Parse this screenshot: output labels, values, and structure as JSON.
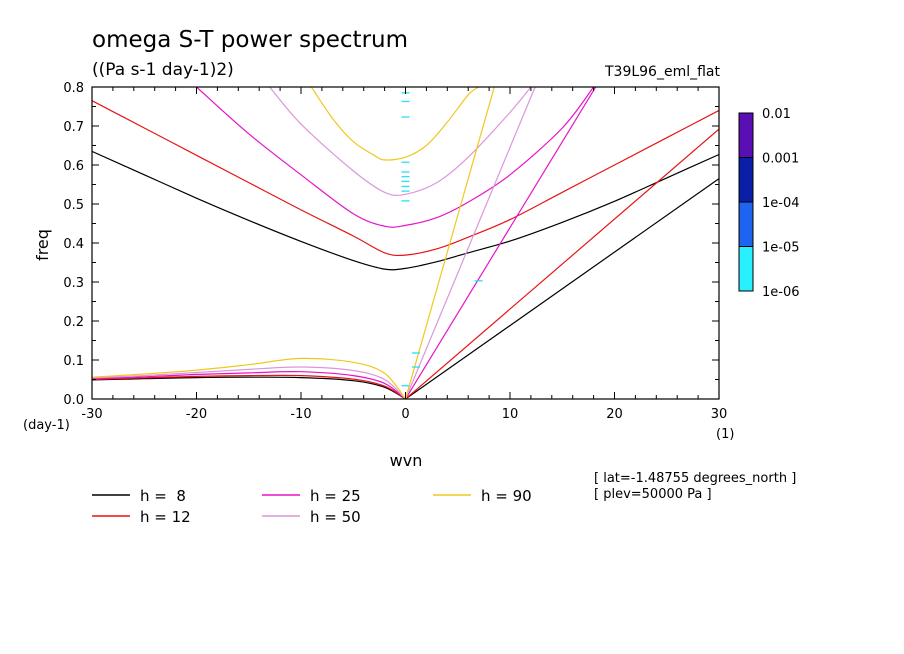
{
  "chart_data": {
    "type": "line",
    "title": "omega S-T power spectrum",
    "subtitle": "((Pa s-1 day-1)2)",
    "run_label": "T39L96_eml_flat",
    "xlabel": "wvn",
    "ylabel": "freq",
    "x_unit": "(1)",
    "y_unit": "(day-1)",
    "xlim": [
      -30,
      30
    ],
    "ylim": [
      0,
      0.8
    ],
    "x_ticks": [
      -30,
      -20,
      -10,
      0,
      10,
      20,
      30
    ],
    "x_tick_labels": [
      "-30",
      "-20",
      "-10",
      "0",
      "10",
      "20",
      "30"
    ],
    "y_ticks": [
      0,
      0.1,
      0.2,
      0.3,
      0.4,
      0.5,
      0.6,
      0.7,
      0.8
    ],
    "y_tick_labels": [
      "0.0",
      "0.1",
      "0.2",
      "0.3",
      "0.4",
      "0.5",
      "0.6",
      "0.7",
      "0.8"
    ],
    "grid": false,
    "info": [
      "[ lat=-1.48755 degrees_north ]",
      "[ plev=50000 Pa ]"
    ],
    "colorbar": {
      "labels": [
        "0.01",
        "0.001",
        "1e-04",
        "1e-05",
        "1e-06"
      ],
      "colors": [
        "#5a0fb4",
        "#0a1ea8",
        "#1e64f0",
        "#28f0ff"
      ]
    },
    "series": [
      {
        "name": "h =  8",
        "color": "#000000",
        "ig": {
          "x": [
            -30,
            -25,
            -20,
            -15,
            -10,
            -5,
            -2,
            0,
            3,
            6,
            10,
            15,
            20,
            25,
            30
          ],
          "y": [
            0.635,
            0.575,
            0.515,
            0.458,
            0.404,
            0.355,
            0.333,
            0.335,
            0.352,
            0.375,
            0.405,
            0.453,
            0.507,
            0.567,
            0.627
          ]
        },
        "kelvin": {
          "x": [
            0,
            30
          ],
          "y": [
            0,
            0.565
          ]
        },
        "rossby": {
          "x": [
            -30,
            -25,
            -20,
            -15,
            -10,
            -5,
            -2,
            0
          ],
          "y": [
            0.049,
            0.052,
            0.055,
            0.056,
            0.055,
            0.047,
            0.03,
            0
          ]
        }
      },
      {
        "name": "h = 12",
        "color": "#e61414",
        "ig": {
          "x": [
            -30,
            -25,
            -20,
            -15,
            -10,
            -5,
            -2,
            0,
            3,
            6,
            10,
            15,
            20,
            25,
            30
          ],
          "y": [
            0.765,
            0.695,
            0.625,
            0.555,
            0.485,
            0.418,
            0.375,
            0.369,
            0.385,
            0.415,
            0.46,
            0.53,
            0.6,
            0.67,
            0.74
          ]
        },
        "kelvin": {
          "x": [
            0,
            30
          ],
          "y": [
            0,
            0.692
          ]
        },
        "rossby": {
          "x": [
            -30,
            -25,
            -20,
            -15,
            -10,
            -5,
            -2,
            0
          ],
          "y": [
            0.05,
            0.054,
            0.058,
            0.06,
            0.06,
            0.051,
            0.033,
            0
          ]
        }
      },
      {
        "name": "h = 25",
        "color": "#e614c8",
        "ig": {
          "x": [
            -20,
            -15,
            -10,
            -5,
            -2,
            0,
            3,
            6,
            10,
            15,
            18
          ],
          "y": [
            0.8,
            0.68,
            0.575,
            0.475,
            0.443,
            0.445,
            0.465,
            0.505,
            0.575,
            0.695,
            0.8
          ]
        },
        "kelvin": {
          "x": [
            0,
            18.2
          ],
          "y": [
            0,
            0.8
          ]
        },
        "rossby": {
          "x": [
            -30,
            -25,
            -20,
            -15,
            -10,
            -5,
            -2,
            0
          ],
          "y": [
            0.052,
            0.057,
            0.063,
            0.067,
            0.07,
            0.06,
            0.04,
            0
          ]
        }
      },
      {
        "name": "h = 50",
        "color": "#dc96dc",
        "ig": {
          "x": [
            -13,
            -10,
            -5,
            -2,
            0,
            3,
            6,
            10,
            12
          ],
          "y": [
            0.8,
            0.705,
            0.585,
            0.53,
            0.525,
            0.555,
            0.62,
            0.735,
            0.8
          ]
        },
        "kelvin": {
          "x": [
            0,
            12.4
          ],
          "y": [
            0,
            0.8
          ]
        },
        "rossby": {
          "x": [
            -30,
            -25,
            -20,
            -15,
            -10,
            -5,
            -2,
            0
          ],
          "y": [
            0.054,
            0.06,
            0.068,
            0.076,
            0.082,
            0.073,
            0.05,
            0
          ]
        }
      },
      {
        "name": "h = 90",
        "color": "#f0c81e",
        "ig": {
          "x": [
            -9,
            -7,
            -5,
            -3,
            -2,
            0,
            2,
            4,
            6,
            7
          ],
          "y": [
            0.8,
            0.72,
            0.66,
            0.625,
            0.613,
            0.62,
            0.65,
            0.71,
            0.78,
            0.8
          ]
        },
        "kelvin": {
          "x": [
            0,
            8.5
          ],
          "y": [
            0,
            0.8
          ]
        },
        "rossby": {
          "x": [
            -30,
            -25,
            -20,
            -15,
            -10,
            -5,
            -2,
            0
          ],
          "y": [
            0.056,
            0.064,
            0.074,
            0.088,
            0.104,
            0.094,
            0.066,
            0
          ]
        }
      }
    ],
    "power_marks": [
      {
        "x": 0,
        "y": 0.785
      },
      {
        "x": 0,
        "y": 0.763
      },
      {
        "x": 0,
        "y": 0.723
      },
      {
        "x": 0,
        "y": 0.607
      },
      {
        "x": 0,
        "y": 0.582
      },
      {
        "x": 0,
        "y": 0.57
      },
      {
        "x": 0,
        "y": 0.558
      },
      {
        "x": 0,
        "y": 0.545
      },
      {
        "x": 0,
        "y": 0.533
      },
      {
        "x": 0,
        "y": 0.508
      },
      {
        "x": 7,
        "y": 0.303
      },
      {
        "x": 1,
        "y": 0.118
      },
      {
        "x": 1,
        "y": 0.082
      },
      {
        "x": 0,
        "y": 0.034
      }
    ]
  }
}
